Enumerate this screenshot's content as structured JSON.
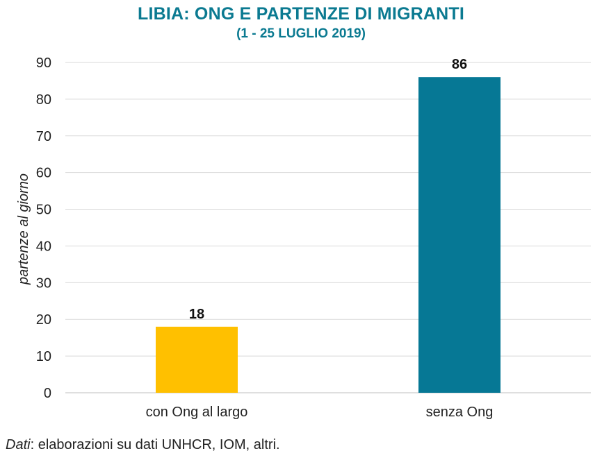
{
  "title": "LIBIA: ONG E PARTENZE DI MIGRANTI",
  "subtitle": "(1 - 25 LUGLIO 2019)",
  "source_label": "Dati",
  "source_text": ": elaborazioni su dati UNHCR, IOM, altri.",
  "chart_data": {
    "type": "bar",
    "categories": [
      "con Ong al largo",
      "senza Ong"
    ],
    "values": [
      18,
      86
    ],
    "colors": [
      "#ffc000",
      "#067895"
    ],
    "ylabel": "partenze al giorno",
    "ylim": [
      0,
      90
    ],
    "yticks": [
      0,
      10,
      20,
      30,
      40,
      50,
      60,
      70,
      80,
      90
    ],
    "grid": true,
    "legend": "none"
  }
}
